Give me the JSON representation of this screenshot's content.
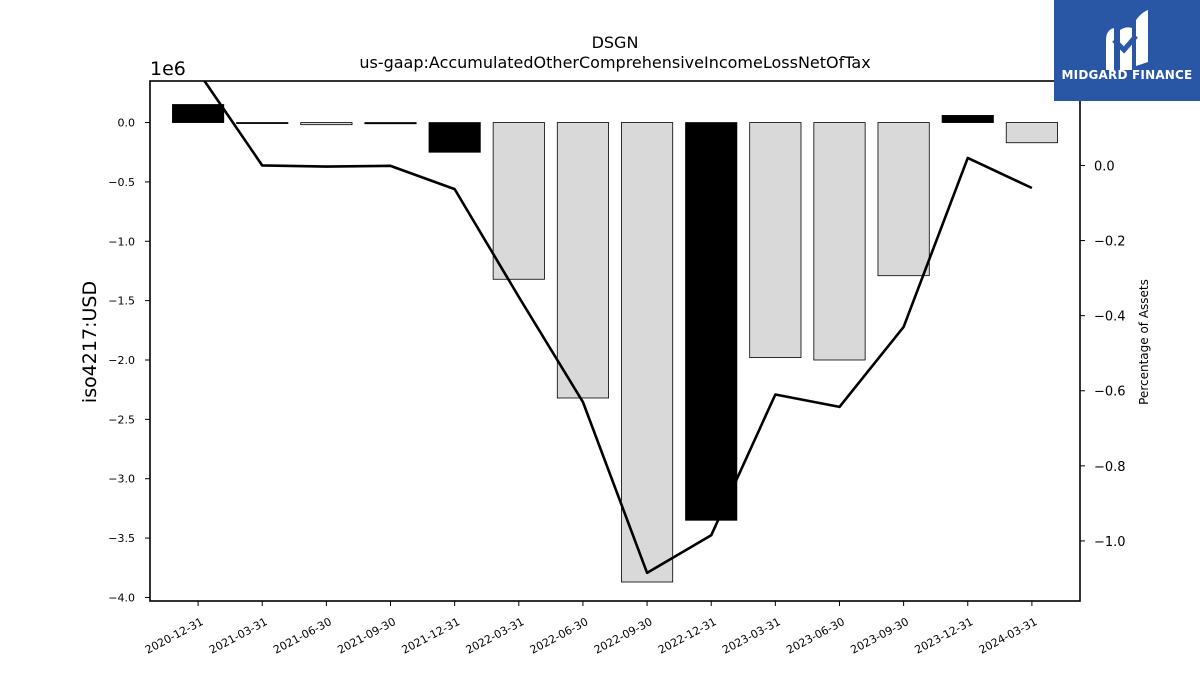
{
  "chart_data": {
    "type": "bar",
    "title": "DSGN",
    "subtitle": "us-gaap:AccumulatedOtherComprehensiveIncomeLossNetOfTax",
    "ylabel": "iso4217:USD",
    "y2label": "Percentage of Assets",
    "offset_label": "1e6",
    "categories": [
      "2020-12-31",
      "2021-03-31",
      "2021-06-30",
      "2021-09-30",
      "2021-12-31",
      "2022-03-31",
      "2022-06-30",
      "2022-09-30",
      "2022-12-31",
      "2023-03-31",
      "2023-06-30",
      "2023-09-30",
      "2023-12-31",
      "2024-03-31"
    ],
    "values": [
      152000,
      -8000,
      -18000,
      -10000,
      -250000,
      -1320000,
      -2320000,
      -3870000,
      -3350000,
      -1980000,
      -2000000,
      -1290000,
      60000,
      -170000
    ],
    "bar_colors": [
      "#000000",
      "#000000",
      "#d9d9d9",
      "#000000",
      "#000000",
      "#d9d9d9",
      "#d9d9d9",
      "#d9d9d9",
      "#000000",
      "#d9d9d9",
      "#d9d9d9",
      "#d9d9d9",
      "#000000",
      "#d9d9d9"
    ],
    "ylim": [
      -4030000,
      350000
    ],
    "yticks": [
      0,
      -500000,
      -1000000,
      -1500000,
      -2000000,
      -2500000,
      -3000000,
      -3500000,
      -4000000
    ],
    "ytick_labels": [
      "0.0",
      "−0.5",
      "−1.0",
      "−1.5",
      "−2.0",
      "−2.5",
      "−3.0",
      "−3.5",
      "−4.0"
    ],
    "line": {
      "name": "Percentage of Assets",
      "values": [
        0.25,
        0.0,
        -0.003,
        -0.001,
        -0.063,
        -0.35,
        -0.63,
        -1.085,
        -0.985,
        -0.61,
        -0.643,
        -0.43,
        0.02,
        -0.06
      ]
    },
    "y2lim": [
      -1.16,
      0.225
    ],
    "y2ticks": [
      0.0,
      -0.2,
      -0.4,
      -0.6,
      -0.8,
      -1.0
    ],
    "y2tick_labels": [
      "0.0",
      "−0.2",
      "−0.4",
      "−0.6",
      "−0.8",
      "−1.0"
    ],
    "grid": false
  },
  "branding": {
    "logo_text": "MIDGARD FINANCE"
  }
}
